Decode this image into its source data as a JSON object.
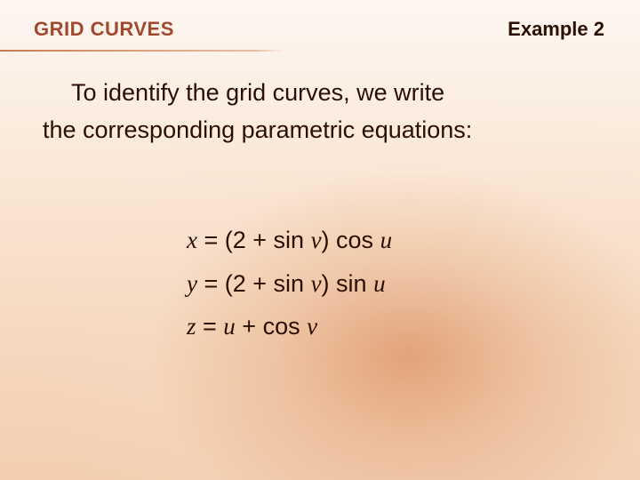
{
  "header": {
    "section_title": "GRID CURVES",
    "example_label": "Example 2",
    "title_color": "#a1482e",
    "text_color": "#2b0f02",
    "title_fontsize": 22,
    "underline_color_start": "#cb7a4f",
    "underline_color_end": "#e9bfa2"
  },
  "body": {
    "line1": "To identify the grid curves, we write",
    "line2": "the corresponding parametric equations:",
    "fontsize": 27,
    "text_color": "#2b0f02"
  },
  "equations": {
    "fontsize": 27,
    "text_color": "#2b0f02",
    "eq1": {
      "lhs": "x",
      "rhs_a": " = (2 + sin ",
      "rhs_b": "v",
      "rhs_c": ") cos ",
      "rhs_d": "u"
    },
    "eq2": {
      "lhs": "y",
      "rhs_a": " = (2 + sin ",
      "rhs_b": "v",
      "rhs_c": ") sin ",
      "rhs_d": "u"
    },
    "eq3": {
      "lhs": "z",
      "rhs_a": " = ",
      "rhs_b": "u",
      "rhs_c": " + cos ",
      "rhs_d": "v"
    }
  },
  "background": {
    "gradient_top": "#fdf7f1",
    "gradient_mid": "#f6d8bf",
    "gradient_bottom": "#f3ceb1",
    "radial_center": "#d27846"
  }
}
